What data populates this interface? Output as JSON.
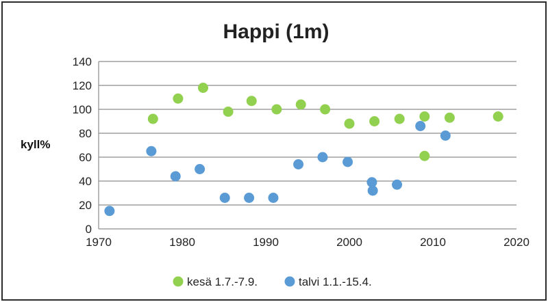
{
  "chart_data": {
    "type": "scatter",
    "title": "Happi (1m)",
    "xlabel": "",
    "ylabel": "kyll%",
    "xlim": [
      1970,
      2020
    ],
    "ylim": [
      0,
      140
    ],
    "x_ticks": [
      1970,
      1980,
      1990,
      2000,
      2010,
      2020
    ],
    "y_ticks": [
      0,
      20,
      40,
      60,
      80,
      100,
      120,
      140
    ],
    "grid": "horizontal",
    "legend_position": "bottom",
    "series": [
      {
        "name": "kesä 1.7.-7.9.",
        "color": "#92D050",
        "points": [
          [
            1976.5,
            92
          ],
          [
            1979.5,
            109
          ],
          [
            1982.5,
            118
          ],
          [
            1985.5,
            98
          ],
          [
            1988.3,
            107
          ],
          [
            1991.3,
            100
          ],
          [
            1994.2,
            104
          ],
          [
            1997.1,
            100
          ],
          [
            2000,
            88
          ],
          [
            2003,
            90
          ],
          [
            2006,
            92
          ],
          [
            2009,
            94
          ],
          [
            2009,
            61
          ],
          [
            2012,
            93
          ],
          [
            2017.8,
            94
          ]
        ]
      },
      {
        "name": "talvi 1.1.-15.4.",
        "color": "#5B9BD5",
        "points": [
          [
            1971.3,
            15
          ],
          [
            1976.3,
            65
          ],
          [
            1979.2,
            44
          ],
          [
            1982.1,
            50
          ],
          [
            1985.1,
            26
          ],
          [
            1988,
            26
          ],
          [
            1990.9,
            26
          ],
          [
            1993.9,
            54
          ],
          [
            1996.8,
            60
          ],
          [
            1999.8,
            56
          ],
          [
            2002.7,
            39
          ],
          [
            2002.8,
            32
          ],
          [
            2005.7,
            37
          ],
          [
            2008.5,
            86
          ],
          [
            2011.5,
            78
          ]
        ]
      }
    ]
  }
}
